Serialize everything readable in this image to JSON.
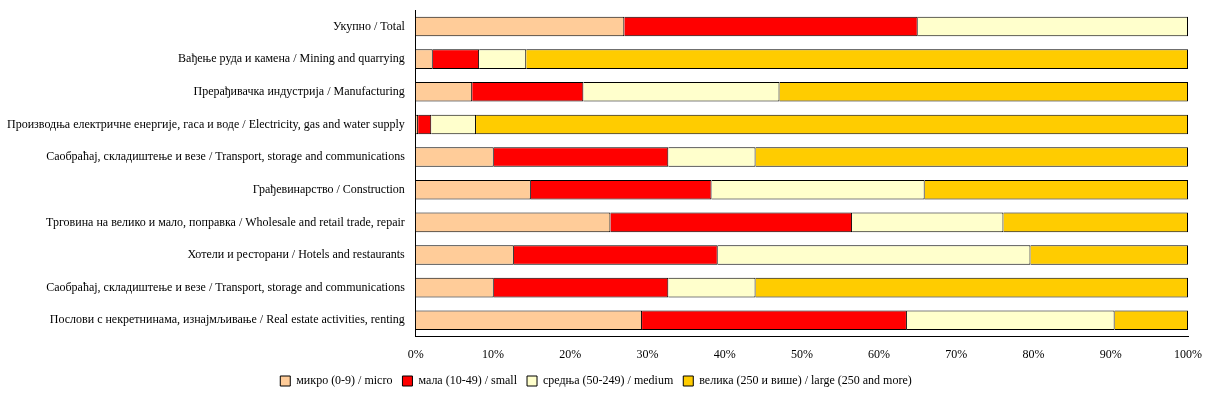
{
  "chart_data": {
    "type": "bar",
    "orientation": "horizontal",
    "stacked": true,
    "grid": false,
    "legend": "bottom",
    "categories": [
      "Укупно / Total",
      "Вађење руда и камена / Mining and quarrying",
      "Прерађивачка индустрија / Manufacturing",
      "Производња електричне енергије, гаса и воде / Electricity, gas and water supply",
      "Саобраћај, складиштење и везе / Transport, storage and communications",
      "Грађевинарство / Construction",
      "Трговина на велико и мало, поправка / Wholesale and retail trade, repair",
      "Хотели и ресторани / Hotels and restaurants",
      "Саобраћај, складиштење и везе / Transport, storage and communications",
      "Послови с некретнинама, изнајмљивање / Real estate activities, renting"
    ],
    "series": [
      {
        "name": "микро (0-9) / micro",
        "color": "#ffcc99",
        "values": [
          27,
          2.2,
          7.3,
          0.3,
          10.1,
          14.9,
          25.2,
          12.7,
          10.1,
          29.3
        ]
      },
      {
        "name": "мала (10-49) / small",
        "color": "#ff0000",
        "values": [
          38,
          6,
          14.4,
          1.7,
          22.6,
          23.4,
          31.3,
          26.4,
          22.6,
          34.3
        ]
      },
      {
        "name": "средња (50-249) / medium",
        "color": "#ffffcc",
        "values": [
          35,
          6.1,
          25.4,
          5.8,
          11.3,
          27.6,
          19.6,
          40.5,
          11.3,
          26.9
        ]
      },
      {
        "name": "велика (250 и више) / large (250 and more)",
        "color": "#ffcc00",
        "values": [
          0,
          85.7,
          52.9,
          92.2,
          56,
          34.1,
          23.9,
          20.4,
          56,
          9.5
        ]
      }
    ],
    "xlim": [
      0,
      100
    ],
    "xticks": [
      {
        "value": 0,
        "label": "0%"
      },
      {
        "value": 10,
        "label": "10%"
      },
      {
        "value": 20,
        "label": "20%"
      },
      {
        "value": 30,
        "label": "30%"
      },
      {
        "value": 40,
        "label": "40%"
      },
      {
        "value": 50,
        "label": "50%"
      },
      {
        "value": 60,
        "label": "60%"
      },
      {
        "value": 70,
        "label": "70%"
      },
      {
        "value": 80,
        "label": "80%"
      },
      {
        "value": 90,
        "label": "90%"
      },
      {
        "value": 100,
        "label": "100%"
      }
    ]
  }
}
